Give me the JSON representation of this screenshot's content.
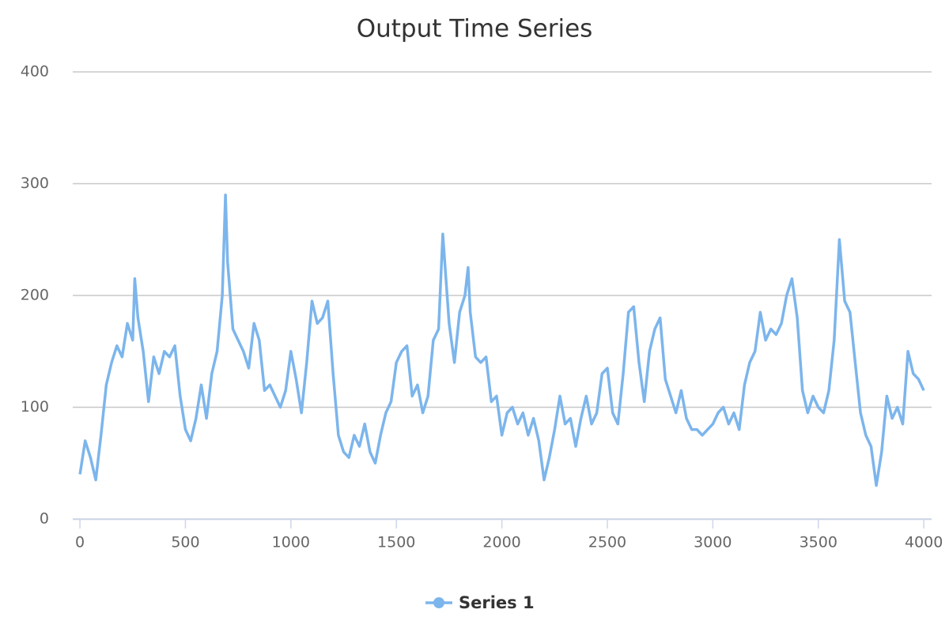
{
  "chart_data": {
    "type": "line",
    "title": "Output Time Series",
    "x": [
      0,
      25,
      50,
      75,
      100,
      125,
      150,
      175,
      200,
      225,
      250,
      260,
      275,
      300,
      325,
      350,
      375,
      400,
      425,
      450,
      475,
      500,
      525,
      550,
      575,
      600,
      625,
      650,
      675,
      690,
      700,
      725,
      750,
      775,
      800,
      825,
      850,
      875,
      900,
      925,
      950,
      975,
      1000,
      1025,
      1050,
      1075,
      1100,
      1125,
      1150,
      1175,
      1200,
      1225,
      1250,
      1275,
      1300,
      1325,
      1350,
      1375,
      1400,
      1425,
      1450,
      1475,
      1500,
      1525,
      1550,
      1575,
      1600,
      1625,
      1650,
      1675,
      1700,
      1720,
      1750,
      1775,
      1800,
      1825,
      1840,
      1850,
      1875,
      1900,
      1925,
      1950,
      1975,
      2000,
      2025,
      2050,
      2075,
      2100,
      2125,
      2150,
      2175,
      2200,
      2225,
      2250,
      2275,
      2300,
      2325,
      2350,
      2375,
      2400,
      2425,
      2450,
      2475,
      2500,
      2525,
      2550,
      2575,
      2600,
      2625,
      2650,
      2675,
      2700,
      2725,
      2750,
      2775,
      2800,
      2825,
      2850,
      2875,
      2900,
      2925,
      2950,
      2975,
      3000,
      3025,
      3050,
      3075,
      3100,
      3125,
      3150,
      3175,
      3200,
      3225,
      3250,
      3275,
      3300,
      3325,
      3350,
      3375,
      3400,
      3425,
      3450,
      3475,
      3500,
      3525,
      3550,
      3575,
      3600,
      3625,
      3650,
      3675,
      3700,
      3725,
      3750,
      3775,
      3800,
      3825,
      3850,
      3875,
      3900,
      3925,
      3950,
      3975,
      4000
    ],
    "series": [
      {
        "name": "Series 1",
        "color": "#7cb5ec",
        "values": [
          40,
          70,
          55,
          35,
          75,
          120,
          140,
          155,
          145,
          175,
          160,
          215,
          180,
          150,
          105,
          145,
          130,
          150,
          145,
          155,
          110,
          80,
          70,
          90,
          120,
          90,
          130,
          150,
          200,
          290,
          230,
          170,
          160,
          150,
          135,
          175,
          160,
          115,
          120,
          110,
          100,
          115,
          150,
          125,
          95,
          140,
          195,
          175,
          180,
          195,
          130,
          75,
          60,
          55,
          75,
          65,
          85,
          60,
          50,
          75,
          95,
          105,
          140,
          150,
          155,
          110,
          120,
          95,
          110,
          160,
          170,
          255,
          175,
          140,
          185,
          200,
          225,
          185,
          145,
          140,
          145,
          105,
          110,
          75,
          95,
          100,
          85,
          95,
          75,
          90,
          70,
          35,
          55,
          80,
          110,
          85,
          90,
          65,
          90,
          110,
          85,
          95,
          130,
          135,
          95,
          85,
          130,
          185,
          190,
          140,
          105,
          150,
          170,
          180,
          125,
          110,
          95,
          115,
          90,
          80,
          80,
          75,
          80,
          85,
          95,
          100,
          85,
          95,
          80,
          120,
          140,
          150,
          185,
          160,
          170,
          165,
          175,
          200,
          215,
          180,
          115,
          95,
          110,
          100,
          95,
          115,
          160,
          250,
          195,
          185,
          140,
          95,
          75,
          65,
          30,
          60,
          110,
          90,
          100,
          85,
          150,
          130,
          125,
          115
        ]
      }
    ],
    "xlim": [
      -34,
      4037
    ],
    "ylim": [
      0,
      400
    ],
    "xticks": [
      0,
      500,
      1000,
      1500,
      2000,
      2500,
      3000,
      3500,
      4000
    ],
    "yticks": [
      0,
      100,
      200,
      300,
      400
    ],
    "grid": true
  }
}
